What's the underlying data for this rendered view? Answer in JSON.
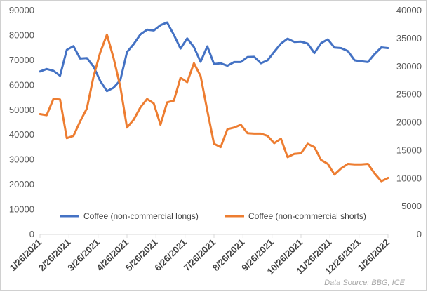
{
  "chart_data": {
    "type": "line",
    "title": "",
    "source_note": "Data Source: BBG, ICE",
    "x_tick_labels": [
      "1/26/2021",
      "2/26/2021",
      "3/26/2021",
      "4/26/2021",
      "5/26/2021",
      "6/26/2021",
      "7/26/2021",
      "8/26/2021",
      "9/26/2021",
      "10/26/2021",
      "11/26/2021",
      "12/26/2021",
      "1/26/2022"
    ],
    "y_left": {
      "min": 0,
      "max": 90000,
      "step": 10000,
      "ticks": [
        "0",
        "10000",
        "20000",
        "30000",
        "40000",
        "50000",
        "60000",
        "70000",
        "80000",
        "90000"
      ]
    },
    "y_right": {
      "min": 0,
      "max": 40000,
      "step": 5000,
      "ticks": [
        "0",
        "5000",
        "10000",
        "15000",
        "20000",
        "25000",
        "30000",
        "35000",
        "40000"
      ]
    },
    "grid": false,
    "legend_position": "bottom",
    "series": [
      {
        "name": "Coffee (non-commercial longs)",
        "axis": "left",
        "color": "#4472c4",
        "values": [
          65500,
          66500,
          65800,
          63800,
          74200,
          75700,
          70700,
          70900,
          67500,
          61700,
          57600,
          59000,
          62000,
          73300,
          76500,
          80400,
          82300,
          82000,
          84100,
          85200,
          80200,
          74700,
          78800,
          75300,
          69400,
          75600,
          68500,
          68800,
          67800,
          69300,
          69300,
          71300,
          71400,
          68800,
          70000,
          73400,
          76700,
          78700,
          77400,
          77500,
          76700,
          72900,
          76900,
          78400,
          75100,
          74900,
          73700,
          70000,
          69600,
          69300,
          72500,
          75200,
          74900
        ]
      },
      {
        "name": "Coffee (non-commercial shorts)",
        "axis": "right",
        "color": "#ed7d31",
        "values": [
          21500,
          21300,
          24200,
          24100,
          17200,
          17600,
          20200,
          22500,
          28200,
          32500,
          35700,
          31500,
          26400,
          19100,
          20500,
          22700,
          24200,
          23400,
          19600,
          23600,
          23900,
          28000,
          27200,
          30600,
          28300,
          22100,
          16200,
          15600,
          18800,
          19100,
          19600,
          18100,
          18000,
          18000,
          17600,
          16300,
          17100,
          13800,
          14400,
          14500,
          16200,
          15600,
          13300,
          12600,
          10700,
          11800,
          12600,
          12500,
          12500,
          12600,
          10900,
          9500,
          10100
        ]
      }
    ]
  }
}
